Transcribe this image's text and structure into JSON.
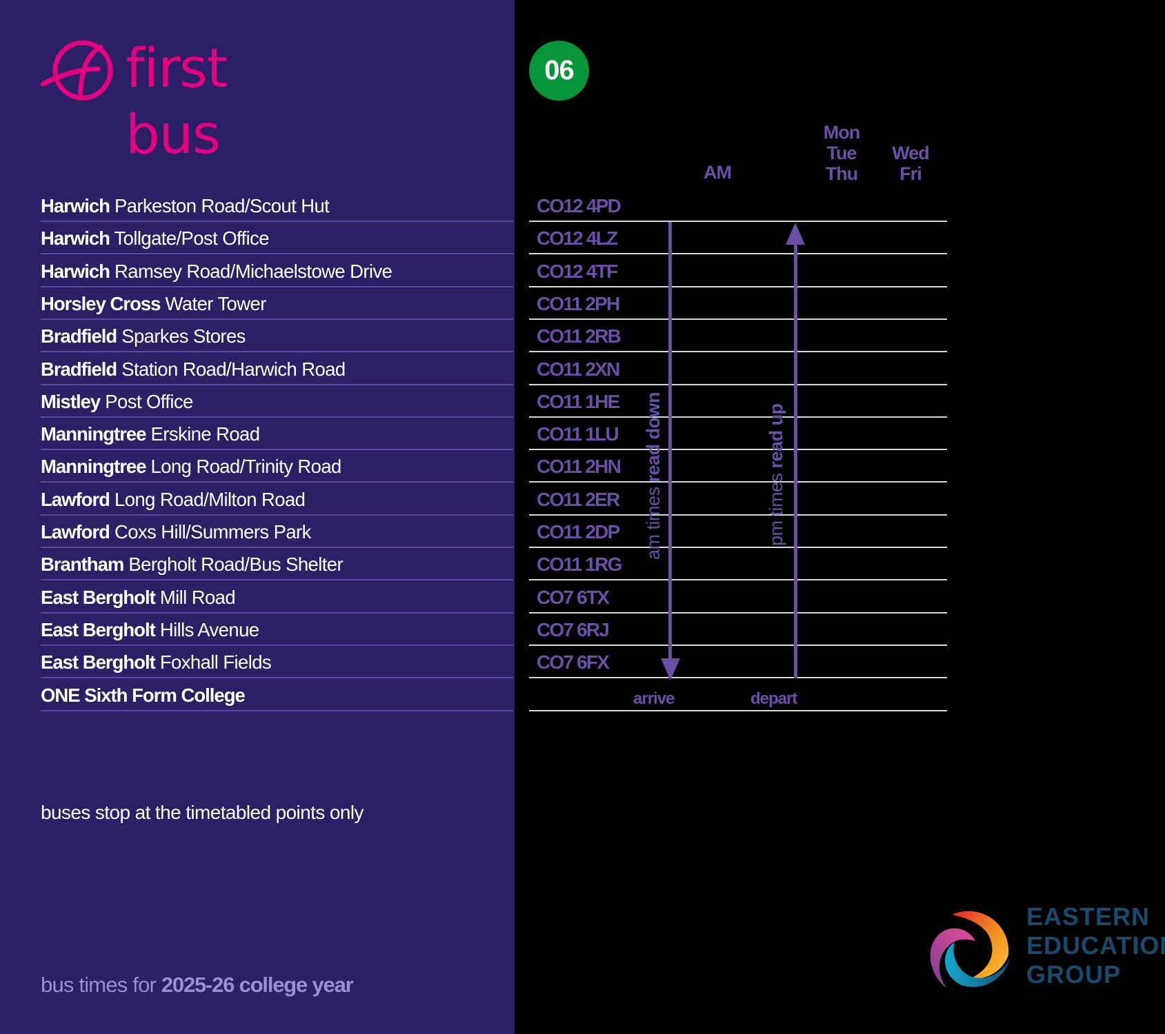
{
  "brand": {
    "name": "first bus",
    "logo_icon": "first-bus-f-circle-icon",
    "color": "#e6007e"
  },
  "route": {
    "number": "06",
    "badge_color": "#07953a"
  },
  "columns": {
    "am": "AM",
    "mon_tue_thu": [
      "Mon",
      "Tue",
      "Thu"
    ],
    "wed_fri": [
      "Wed",
      "Fri"
    ]
  },
  "stops": [
    {
      "town": "Harwich",
      "name": "Parkeston Road/Scout Hut",
      "postcode": "CO12 4PD"
    },
    {
      "town": "Harwich",
      "name": "Tollgate/Post Office",
      "postcode": "CO12 4LZ"
    },
    {
      "town": "Harwich",
      "name": "Ramsey Road/Michaelstowe Drive",
      "postcode": "CO12 4TF"
    },
    {
      "town": "Horsley Cross",
      "name": "Water Tower",
      "postcode": "CO11 2PH"
    },
    {
      "town": "Bradfield",
      "name": "Sparkes Stores",
      "postcode": "CO11 2RB"
    },
    {
      "town": "Bradfield",
      "name": "Station Road/Harwich Road",
      "postcode": "CO11 2XN"
    },
    {
      "town": "Mistley",
      "name": "Post Office",
      "postcode": "CO11 1HE"
    },
    {
      "town": "Manningtree",
      "name": "Erskine Road",
      "postcode": "CO11 1LU"
    },
    {
      "town": "Manningtree",
      "name": "Long Road/Trinity Road",
      "postcode": "CO11 2HN"
    },
    {
      "town": "Lawford",
      "name": "Long Road/Milton Road",
      "postcode": "CO11 2ER"
    },
    {
      "town": "Lawford",
      "name": "Coxs Hill/Summers Park",
      "postcode": "CO11 2DP"
    },
    {
      "town": "Brantham",
      "name": "Bergholt Road/Bus Shelter",
      "postcode": "CO11 1RG"
    },
    {
      "town": "East Bergholt",
      "name": "Mill Road",
      "postcode": "CO7 6TX"
    },
    {
      "town": "East Bergholt",
      "name": "Hills Avenue",
      "postcode": "CO7 6RJ"
    },
    {
      "town": "East Bergholt",
      "name": "Foxhall Fields",
      "postcode": "CO7 6FX"
    },
    {
      "town": "ONE Sixth Form College",
      "name": "",
      "postcode": ""
    }
  ],
  "direction_labels": {
    "am_prefix": "am times ",
    "am_bold": "read down",
    "pm_prefix": "pm times ",
    "pm_bold": "read up",
    "arrive": "arrive",
    "depart": "depart"
  },
  "notes": {
    "stop_note": "buses stop at the timetabled points only",
    "year_prefix": "bus times for ",
    "year_bold": "2025-26 college year"
  },
  "partner": {
    "lines": [
      "EASTERN",
      "EDUCATION",
      "GROUP"
    ],
    "logo_icon": "swirl-circle-icon"
  },
  "colors": {
    "left_panel": "#2d1f66",
    "accent_purple": "#6b4ea6",
    "row_divider_left": "#5e47a6",
    "row_divider_right": "#d9d9d9",
    "year_text": "#9b8fd0",
    "partner_text": "#174a6b"
  }
}
